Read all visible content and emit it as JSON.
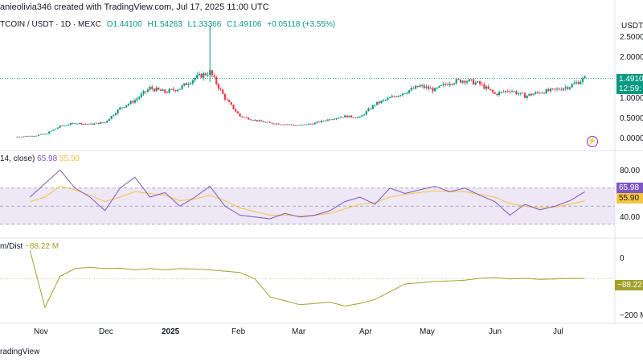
{
  "header": {
    "text": "anieolivia346 created with TradingView.com, Jul 17, 2025 11:00 UTC"
  },
  "symbol": {
    "name": "TCOIN / USDT · 1D · MEXC",
    "open": "O1.44100",
    "high": "H1.54263",
    "low": "L1.33366",
    "close": "C1.49106",
    "change": "+0.05118 (+3.55%)"
  },
  "price_axis": {
    "currency": "USDT",
    "ticks": [
      "2.50000",
      "2.00000",
      "1.50000",
      "1.00000",
      "0.50000",
      "0.00000"
    ],
    "last_price_label": "1.4910",
    "countdown_label": "12:59:"
  },
  "rsi_panel": {
    "label": "14, close)",
    "rsi_value": "65.98",
    "ma_value": "55.90",
    "ticks": [
      "80.00",
      "40.00"
    ],
    "rsi_badge": "65.98",
    "ma_badge": "55.90"
  },
  "volume_panel": {
    "label": "m/Dist",
    "value": "−88.22 M",
    "ticks": [
      "0",
      "−200 M"
    ],
    "badge": "−88.22"
  },
  "time_axis": {
    "labels": [
      "Nov",
      "Dec",
      "2025",
      "Feb",
      "Mar",
      "Apr",
      "May",
      "Jun",
      "Jul"
    ]
  },
  "footer": {
    "text": "radingView"
  },
  "colors": {
    "up": "#089981",
    "down": "#f23645",
    "rsi": "#7e57c2",
    "rsi_ma": "#f5c542",
    "volume_line": "#a3a02b",
    "band_fill": "#ede7f6",
    "price_line": "#089981"
  },
  "chart_data": [
    {
      "type": "candlestick",
      "yrange": [
        0,
        2.5
      ],
      "x": [
        "2024-10-20",
        "2024-10-27",
        "2024-11-03",
        "2024-11-10",
        "2024-11-17",
        "2024-11-24",
        "2024-12-01",
        "2024-12-08",
        "2024-12-15",
        "2024-12-22",
        "2024-12-29",
        "2025-01-05",
        "2025-01-12",
        "2025-01-19",
        "2025-01-26",
        "2025-02-02",
        "2025-02-09",
        "2025-02-16",
        "2025-02-23",
        "2025-03-02",
        "2025-03-09",
        "2025-03-16",
        "2025-03-23",
        "2025-03-30",
        "2025-04-06",
        "2025-04-13",
        "2025-04-20",
        "2025-04-27",
        "2025-05-04",
        "2025-05-11",
        "2025-05-18",
        "2025-05-25",
        "2025-06-01",
        "2025-06-08",
        "2025-06-15",
        "2025-06-22",
        "2025-06-29",
        "2025-07-06",
        "2025-07-13"
      ],
      "close": [
        0.04,
        0.06,
        0.1,
        0.3,
        0.38,
        0.35,
        0.4,
        0.75,
        0.95,
        1.25,
        1.15,
        1.25,
        1.5,
        1.65,
        1.0,
        0.55,
        0.45,
        0.38,
        0.35,
        0.32,
        0.38,
        0.48,
        0.55,
        0.52,
        0.85,
        1.0,
        1.15,
        1.3,
        1.2,
        1.4,
        1.45,
        1.35,
        1.1,
        1.2,
        1.05,
        1.15,
        1.2,
        1.3,
        1.49
      ]
    },
    {
      "type": "line",
      "name": "RSI",
      "yrange": [
        20,
        100
      ],
      "x": [
        "2024-10-27",
        "2024-11-03",
        "2024-11-10",
        "2024-11-17",
        "2024-11-24",
        "2024-12-01",
        "2024-12-08",
        "2024-12-15",
        "2024-12-22",
        "2024-12-29",
        "2025-01-05",
        "2025-01-12",
        "2025-01-19",
        "2025-01-26",
        "2025-02-02",
        "2025-02-09",
        "2025-02-16",
        "2025-02-23",
        "2025-03-02",
        "2025-03-09",
        "2025-03-16",
        "2025-03-23",
        "2025-03-30",
        "2025-04-06",
        "2025-04-13",
        "2025-04-20",
        "2025-04-27",
        "2025-05-04",
        "2025-05-11",
        "2025-05-18",
        "2025-05-25",
        "2025-06-01",
        "2025-06-08",
        "2025-06-15",
        "2025-06-22",
        "2025-06-29",
        "2025-07-06",
        "2025-07-13"
      ],
      "series": [
        {
          "name": "RSI",
          "values": [
            60,
            75,
            90,
            70,
            60,
            45,
            70,
            82,
            60,
            65,
            50,
            60,
            72,
            50,
            40,
            38,
            36,
            42,
            38,
            40,
            45,
            55,
            60,
            52,
            70,
            64,
            68,
            72,
            66,
            70,
            62,
            55,
            40,
            52,
            46,
            50,
            56,
            66
          ]
        },
        {
          "name": "MA",
          "values": [
            55,
            60,
            72,
            68,
            62,
            55,
            60,
            66,
            64,
            62,
            56,
            58,
            62,
            56,
            48,
            44,
            40,
            40,
            39,
            40,
            42,
            47,
            52,
            54,
            60,
            63,
            65,
            67,
            66,
            66,
            63,
            60,
            53,
            50,
            48,
            49,
            52,
            56
          ]
        }
      ]
    },
    {
      "type": "line",
      "name": "Accumulation/Distribution",
      "yrange": [
        -250,
        40
      ],
      "x": [
        "2024-10-27",
        "2024-11-03",
        "2024-11-10",
        "2024-11-17",
        "2024-11-24",
        "2024-12-01",
        "2024-12-08",
        "2024-12-15",
        "2024-12-22",
        "2024-12-29",
        "2025-01-05",
        "2025-01-12",
        "2025-01-19",
        "2025-01-26",
        "2025-02-02",
        "2025-02-09",
        "2025-02-16",
        "2025-02-23",
        "2025-03-02",
        "2025-03-09",
        "2025-03-16",
        "2025-03-23",
        "2025-03-30",
        "2025-04-06",
        "2025-04-13",
        "2025-04-20",
        "2025-04-27",
        "2025-05-04",
        "2025-05-11",
        "2025-05-18",
        "2025-05-25",
        "2025-06-01",
        "2025-06-08",
        "2025-06-15",
        "2025-06-22",
        "2025-06-29",
        "2025-07-06",
        "2025-07-13"
      ],
      "values": [
        20,
        -200,
        -80,
        -50,
        -45,
        -50,
        -48,
        -55,
        -50,
        -55,
        -50,
        -52,
        -55,
        -60,
        -65,
        -90,
        -160,
        -175,
        -190,
        -185,
        -180,
        -195,
        -185,
        -170,
        -140,
        -110,
        -105,
        -100,
        -98,
        -95,
        -88,
        -85,
        -90,
        -88,
        -92,
        -90,
        -88,
        -88.22
      ]
    }
  ]
}
